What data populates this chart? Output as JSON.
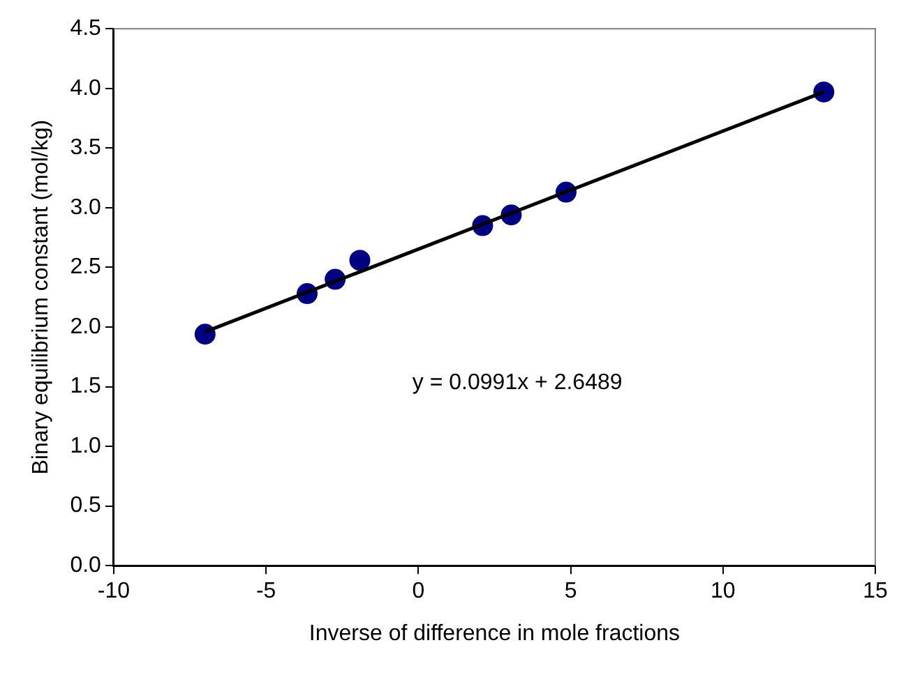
{
  "chart_data": {
    "type": "scatter",
    "xlabel": "Inverse of difference in mole fractions",
    "ylabel": "Binary equilibrium constant (mol/kg)",
    "series": [
      {
        "type": "scatter",
        "color": "#000080",
        "x": [
          -7.0,
          -3.65,
          -2.73,
          -1.92,
          2.11,
          3.05,
          4.85,
          13.31
        ],
        "values": [
          1.94,
          2.28,
          2.4,
          2.56,
          2.85,
          2.94,
          3.13,
          3.97
        ],
        "marker": "circle"
      },
      {
        "type": "line",
        "color": "#000000",
        "x": [
          -7.0,
          13.31
        ],
        "values": [
          1.96,
          3.97
        ],
        "marker": "none",
        "line_style": "solid"
      }
    ],
    "xlim": [
      -10,
      15
    ],
    "xticks": [
      -10,
      -5,
      0,
      5,
      10,
      15
    ],
    "ylim": [
      0,
      4.5
    ],
    "yticks": [
      {
        "value": 0,
        "label": "0.0"
      },
      {
        "value": 0.5,
        "label": "0.5"
      },
      {
        "value": 1,
        "label": "1.0"
      },
      {
        "value": 1.5,
        "label": "1.5"
      },
      {
        "value": 2,
        "label": "2.0"
      },
      {
        "value": 2.5,
        "label": "2.5"
      },
      {
        "value": 3,
        "label": "3.0"
      },
      {
        "value": 3.5,
        "label": "3.5"
      },
      {
        "value": 4,
        "label": "4.0"
      },
      {
        "value": 4.5,
        "label": "4.5"
      }
    ],
    "grid": false,
    "legend": false,
    "annotations": [
      "y = 0.0991x + 2.6489"
    ]
  }
}
